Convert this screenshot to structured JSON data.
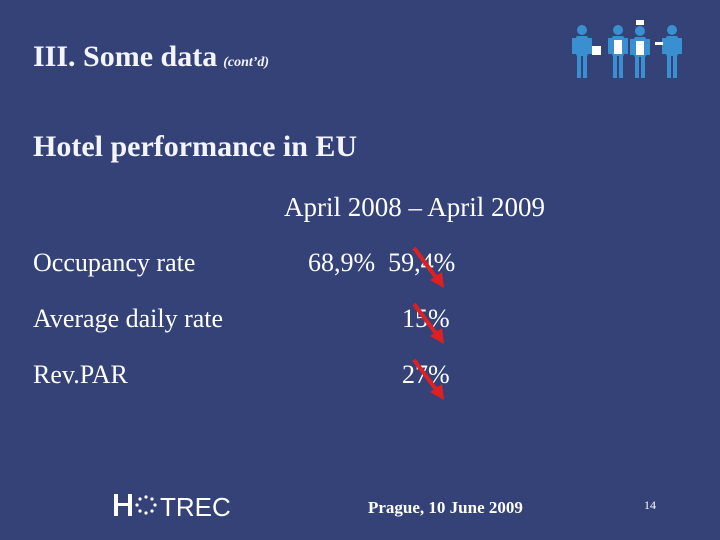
{
  "slide": {
    "title": "III. Some data",
    "title_suffix": "(cont’d)",
    "subtitle": "Hotel performance in EU",
    "period": "April 2008 – April 2009",
    "rows": [
      {
        "label": "Occupancy rate",
        "value": "68,9%  59,4%"
      },
      {
        "label": "Average daily rate",
        "value": "15%"
      },
      {
        "label": "Rev.PAR",
        "value": "27%"
      }
    ],
    "footer": "Prague, 10 June 2009",
    "page_number": "14",
    "logo_text": "HOTREC"
  },
  "icons": {
    "people": "hotel-staff-icon",
    "trend": "red-down-arrow-icon"
  },
  "colors": {
    "background": "#344278",
    "text": "#ffffff",
    "arrow": "#e02020",
    "people": "#3a8fd0"
  }
}
